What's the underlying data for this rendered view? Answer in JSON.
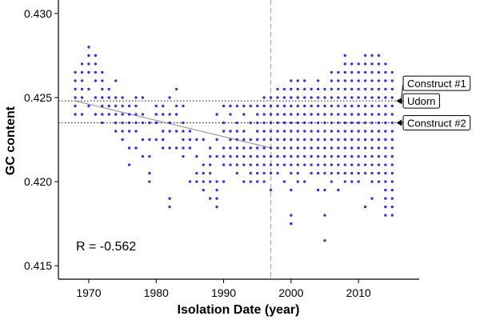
{
  "chart_data": {
    "type": "scatter",
    "title": "",
    "xlabel": "Isolation Date (year)",
    "ylabel": "GC content",
    "xlim": [
      1965.5,
      2019
    ],
    "ylim": [
      0.4142,
      0.4308
    ],
    "x_ticks": [
      1970,
      1980,
      1990,
      2000,
      2010
    ],
    "x_tick_labels": [
      "1970",
      "1980",
      "1990",
      "2000",
      "2010"
    ],
    "y_ticks": [
      0.415,
      0.42,
      0.425,
      0.43
    ],
    "y_tick_labels": [
      "0.415",
      "0.420",
      "0.425",
      "0.430"
    ],
    "grid": false,
    "point_color": "#3333e6",
    "correlation_label": "R = -0.562",
    "vertical_reference_line": {
      "x": 1997,
      "style": "dashed",
      "color": "#aaaaaa"
    },
    "regression_line": {
      "x": [
        1968,
        1997
      ],
      "y": [
        0.4248,
        0.422
      ],
      "color": "#999999"
    },
    "reference_lines": [
      {
        "label": "Construct #1",
        "y": 0.4248
      },
      {
        "label": "Udorn",
        "y": 0.4248
      },
      {
        "label": "Construct #2",
        "y": 0.4235
      }
    ],
    "points": [
      {
        "x": 1968,
        "y": [
          0.424,
          0.4245,
          0.425,
          0.4255,
          0.426,
          0.4265
        ]
      },
      {
        "x": 1969,
        "y": [
          0.424,
          0.425,
          0.4255,
          0.426,
          0.4265,
          0.427
        ]
      },
      {
        "x": 1970,
        "y": [
          0.4245,
          0.4255,
          0.4265,
          0.427,
          0.4275,
          0.428
        ]
      },
      {
        "x": 1971,
        "y": [
          0.424,
          0.425,
          0.426,
          0.4265,
          0.427,
          0.4275
        ]
      },
      {
        "x": 1972,
        "y": [
          0.4235,
          0.424,
          0.4245,
          0.425,
          0.4255,
          0.426,
          0.4265
        ]
      },
      {
        "x": 1973,
        "y": [
          0.424,
          0.4245,
          0.425,
          0.4255
        ]
      },
      {
        "x": 1974,
        "y": [
          0.423,
          0.4235,
          0.424,
          0.4245,
          0.425,
          0.426
        ]
      },
      {
        "x": 1975,
        "y": [
          0.4225,
          0.423,
          0.4235,
          0.424,
          0.4245,
          0.425
        ]
      },
      {
        "x": 1976,
        "y": [
          0.421,
          0.422,
          0.423,
          0.4235,
          0.424,
          0.4245
        ]
      },
      {
        "x": 1977,
        "y": [
          0.422,
          0.423,
          0.4235,
          0.424,
          0.4245,
          0.425
        ]
      },
      {
        "x": 1978,
        "y": [
          0.4215,
          0.4225,
          0.4235,
          0.424,
          0.425
        ]
      },
      {
        "x": 1979,
        "y": [
          0.42,
          0.4205,
          0.4215,
          0.4225,
          0.4235
        ]
      },
      {
        "x": 1980,
        "y": [
          0.4225,
          0.4235,
          0.424,
          0.4245
        ]
      },
      {
        "x": 1981,
        "y": [
          0.422,
          0.4225,
          0.423,
          0.424,
          0.4245
        ]
      },
      {
        "x": 1982,
        "y": [
          0.4185,
          0.419,
          0.422,
          0.423,
          0.4235,
          0.424,
          0.425
        ]
      },
      {
        "x": 1983,
        "y": [
          0.422,
          0.423,
          0.424,
          0.4245,
          0.4255
        ]
      },
      {
        "x": 1984,
        "y": [
          0.4215,
          0.422,
          0.4225,
          0.423,
          0.4235,
          0.4245
        ]
      },
      {
        "x": 1985,
        "y": [
          0.42,
          0.422,
          0.4225,
          0.423
        ]
      },
      {
        "x": 1986,
        "y": [
          0.42,
          0.4205,
          0.4215,
          0.4225
        ]
      },
      {
        "x": 1987,
        "y": [
          0.4195,
          0.42,
          0.4205,
          0.421,
          0.4225
        ]
      },
      {
        "x": 1988,
        "y": [
          0.419,
          0.42,
          0.4205,
          0.421,
          0.4215,
          0.422
        ]
      },
      {
        "x": 1989,
        "y": [
          0.4185,
          0.419,
          0.4195,
          0.42,
          0.4215,
          0.4225,
          0.424
        ]
      },
      {
        "x": 1990,
        "y": [
          0.42,
          0.421,
          0.4215,
          0.422,
          0.423,
          0.4235,
          0.4245
        ]
      },
      {
        "x": 1991,
        "y": [
          0.421,
          0.4215,
          0.422,
          0.4225,
          0.423,
          0.424,
          0.4245
        ]
      },
      {
        "x": 1992,
        "y": [
          0.4205,
          0.421,
          0.4215,
          0.422,
          0.4225,
          0.423,
          0.4235,
          0.4245
        ]
      },
      {
        "x": 1993,
        "y": [
          0.42,
          0.421,
          0.4215,
          0.422,
          0.4225,
          0.423,
          0.424,
          0.4245
        ]
      },
      {
        "x": 1994,
        "y": [
          0.42,
          0.4205,
          0.421,
          0.4215,
          0.422,
          0.4225,
          0.4235,
          0.4245
        ]
      },
      {
        "x": 1995,
        "y": [
          0.42,
          0.4205,
          0.421,
          0.4215,
          0.422,
          0.4225,
          0.423,
          0.4235,
          0.424,
          0.4245
        ]
      },
      {
        "x": 1996,
        "y": [
          0.42,
          0.4205,
          0.421,
          0.4215,
          0.422,
          0.4225,
          0.423,
          0.4235,
          0.424,
          0.4245,
          0.425
        ]
      },
      {
        "x": 1997,
        "y": [
          0.4195,
          0.4205,
          0.421,
          0.4215,
          0.422,
          0.4225,
          0.423,
          0.4235,
          0.424,
          0.4245,
          0.425
        ]
      },
      {
        "x": 1998,
        "y": [
          0.4205,
          0.421,
          0.4215,
          0.422,
          0.4225,
          0.423,
          0.4235,
          0.424,
          0.4245,
          0.425,
          0.4255
        ]
      },
      {
        "x": 1999,
        "y": [
          0.42,
          0.421,
          0.4215,
          0.422,
          0.4225,
          0.423,
          0.4235,
          0.424,
          0.4245,
          0.425,
          0.4255
        ]
      },
      {
        "x": 2000,
        "y": [
          0.4175,
          0.418,
          0.4195,
          0.4205,
          0.421,
          0.4215,
          0.422,
          0.4225,
          0.423,
          0.4235,
          0.424,
          0.4245,
          0.425,
          0.4255,
          0.426
        ]
      },
      {
        "x": 2001,
        "y": [
          0.42,
          0.4205,
          0.421,
          0.4215,
          0.422,
          0.4225,
          0.423,
          0.4235,
          0.424,
          0.4245,
          0.425,
          0.4255,
          0.426
        ]
      },
      {
        "x": 2002,
        "y": [
          0.42,
          0.421,
          0.4215,
          0.422,
          0.4225,
          0.423,
          0.4235,
          0.424,
          0.4245,
          0.425,
          0.4255,
          0.426
        ]
      },
      {
        "x": 2003,
        "y": [
          0.4205,
          0.421,
          0.4215,
          0.422,
          0.4225,
          0.423,
          0.4235,
          0.424,
          0.4245,
          0.425,
          0.4255
        ]
      },
      {
        "x": 2004,
        "y": [
          0.4195,
          0.4205,
          0.421,
          0.4215,
          0.422,
          0.4225,
          0.423,
          0.4235,
          0.424,
          0.4245,
          0.425,
          0.4255,
          0.426
        ]
      },
      {
        "x": 2005,
        "y": [
          0.4165,
          0.418,
          0.4195,
          0.4205,
          0.421,
          0.4215,
          0.422,
          0.4225,
          0.423,
          0.4235,
          0.424,
          0.4245,
          0.425,
          0.4255
        ]
      },
      {
        "x": 2006,
        "y": [
          0.42,
          0.4205,
          0.421,
          0.4215,
          0.422,
          0.4225,
          0.423,
          0.4235,
          0.424,
          0.4245,
          0.425,
          0.4255,
          0.426,
          0.4265
        ]
      },
      {
        "x": 2007,
        "y": [
          0.4195,
          0.4205,
          0.421,
          0.4215,
          0.422,
          0.4225,
          0.423,
          0.4235,
          0.424,
          0.4245,
          0.425,
          0.4255,
          0.426,
          0.4265
        ]
      },
      {
        "x": 2008,
        "y": [
          0.42,
          0.4205,
          0.421,
          0.4215,
          0.422,
          0.4225,
          0.423,
          0.4235,
          0.424,
          0.4245,
          0.425,
          0.4255,
          0.426,
          0.4265,
          0.427,
          0.4275
        ]
      },
      {
        "x": 2009,
        "y": [
          0.42,
          0.4205,
          0.421,
          0.4215,
          0.422,
          0.4225,
          0.423,
          0.4235,
          0.424,
          0.4245,
          0.425,
          0.4255,
          0.426,
          0.4265,
          0.427
        ]
      },
      {
        "x": 2010,
        "y": [
          0.42,
          0.4205,
          0.421,
          0.4215,
          0.422,
          0.4225,
          0.423,
          0.4235,
          0.424,
          0.4245,
          0.425,
          0.4255,
          0.426,
          0.4265,
          0.427
        ]
      },
      {
        "x": 2011,
        "y": [
          0.4185,
          0.4205,
          0.421,
          0.4215,
          0.422,
          0.4225,
          0.423,
          0.4235,
          0.424,
          0.4245,
          0.425,
          0.4255,
          0.426,
          0.4265,
          0.427,
          0.4275
        ]
      },
      {
        "x": 2012,
        "y": [
          0.419,
          0.42,
          0.4205,
          0.421,
          0.4215,
          0.422,
          0.4225,
          0.423,
          0.4235,
          0.424,
          0.4245,
          0.425,
          0.4255,
          0.426,
          0.4265,
          0.427,
          0.4275
        ]
      },
      {
        "x": 2013,
        "y": [
          0.42,
          0.4205,
          0.421,
          0.4215,
          0.422,
          0.4225,
          0.423,
          0.4235,
          0.424,
          0.4245,
          0.425,
          0.4255,
          0.426,
          0.4265,
          0.427,
          0.4275
        ]
      },
      {
        "x": 2014,
        "y": [
          0.418,
          0.4185,
          0.419,
          0.4195,
          0.42,
          0.4205,
          0.421,
          0.4215,
          0.422,
          0.4225,
          0.423,
          0.4235,
          0.424,
          0.4245,
          0.425,
          0.4255,
          0.426,
          0.4265,
          0.427
        ]
      },
      {
        "x": 2015,
        "y": [
          0.418,
          0.4185,
          0.419,
          0.4195,
          0.42,
          0.4205,
          0.421,
          0.4215,
          0.422,
          0.4225,
          0.423,
          0.4235,
          0.424,
          0.4245,
          0.425,
          0.4255,
          0.426,
          0.4265
        ]
      }
    ]
  }
}
